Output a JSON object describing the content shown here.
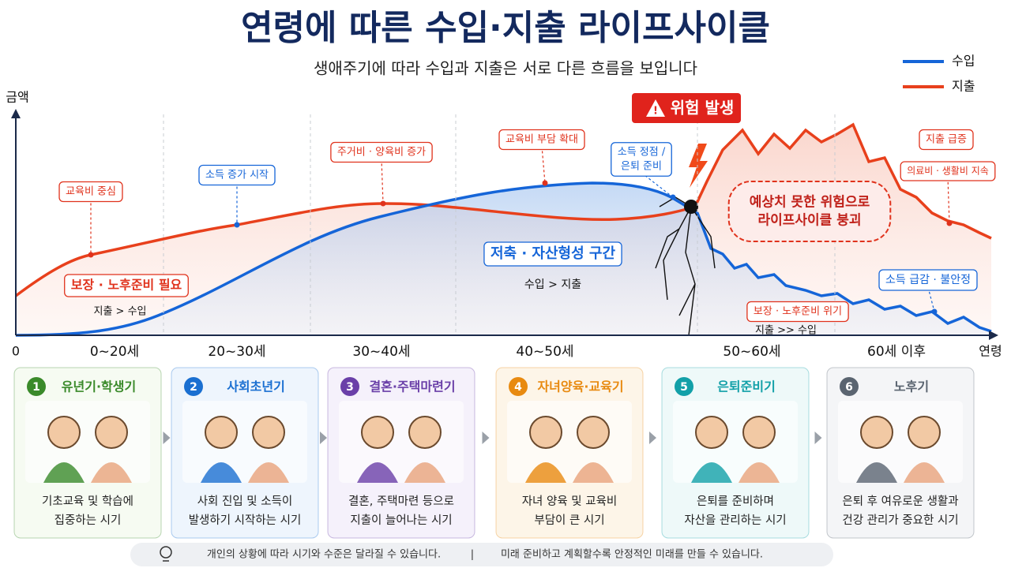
{
  "title": "연령에 따른 수입·지출 라이프사이클",
  "subtitle": "생애주기에 따라 수입과 지출은 서로 다른 흐름을 보입니다",
  "legend": [
    {
      "name": "수입",
      "color": "#1565d8"
    },
    {
      "name": "지출",
      "color": "#e8401c"
    }
  ],
  "axis": {
    "y_label": "금액",
    "x_label": "연령",
    "origin": "0",
    "age_groups": [
      "0~20세",
      "20~30세",
      "30~40세",
      "40~50세",
      "50~60세",
      "60세 이후"
    ]
  },
  "warning": "위험 발생",
  "annotations": [
    [
      "교육비 중심"
    ],
    [
      "보장 · 노후준비 필요"
    ],
    [
      "지출 > 수입"
    ],
    [
      "소득 증가 시작"
    ],
    [
      "주거비 · 양육비 증가"
    ],
    [
      "교육비 부담 확대"
    ],
    [
      "소득 정점 /",
      "은퇴 준비"
    ],
    [
      "저축 · 자산형성 구간"
    ],
    [
      "수입 > 지출"
    ],
    [
      "지출 급증"
    ],
    [
      "의료비 · 생활비 지속"
    ],
    [
      "예상치 못한 위험으로",
      "라이프사이클 붕괴"
    ],
    [
      "소득 급감 · 불안정"
    ],
    [
      "보장 · 노후준비 위기"
    ],
    [
      "지출 >> 수입"
    ]
  ],
  "stages": [
    {
      "number": "1",
      "name": "유년기·학생기",
      "desc": [
        "기초교육 및 학습에",
        "집중하는 시기"
      ]
    },
    {
      "number": "2",
      "name": "사회초년기",
      "desc": [
        "사회 진입 및 소득이",
        "발생하기 시작하는 시기"
      ]
    },
    {
      "number": "3",
      "name": "결혼·주택마련기",
      "desc": [
        "결혼, 주택마련 등으로",
        "지출이 늘어나는 시기"
      ]
    },
    {
      "number": "4",
      "name": "자녀양육·교육기",
      "desc": [
        "자녀 양육 및 교육비",
        "부담이 큰 시기"
      ]
    },
    {
      "number": "5",
      "name": "은퇴준비기",
      "desc": [
        "은퇴를 준비하며",
        "자산을 관리하는 시기"
      ]
    },
    {
      "number": "6",
      "name": "노후기",
      "desc": [
        "은퇴 후 여유로운 생활과",
        "건강 관리가 중요한 시기"
      ]
    }
  ],
  "footer": [
    "개인의 상황에 따라 시기와 수준은 달라질 수 있습니다.",
    "미래 준비하고 계획할수록 안정적인 미래를 만들 수 있습니다."
  ]
}
